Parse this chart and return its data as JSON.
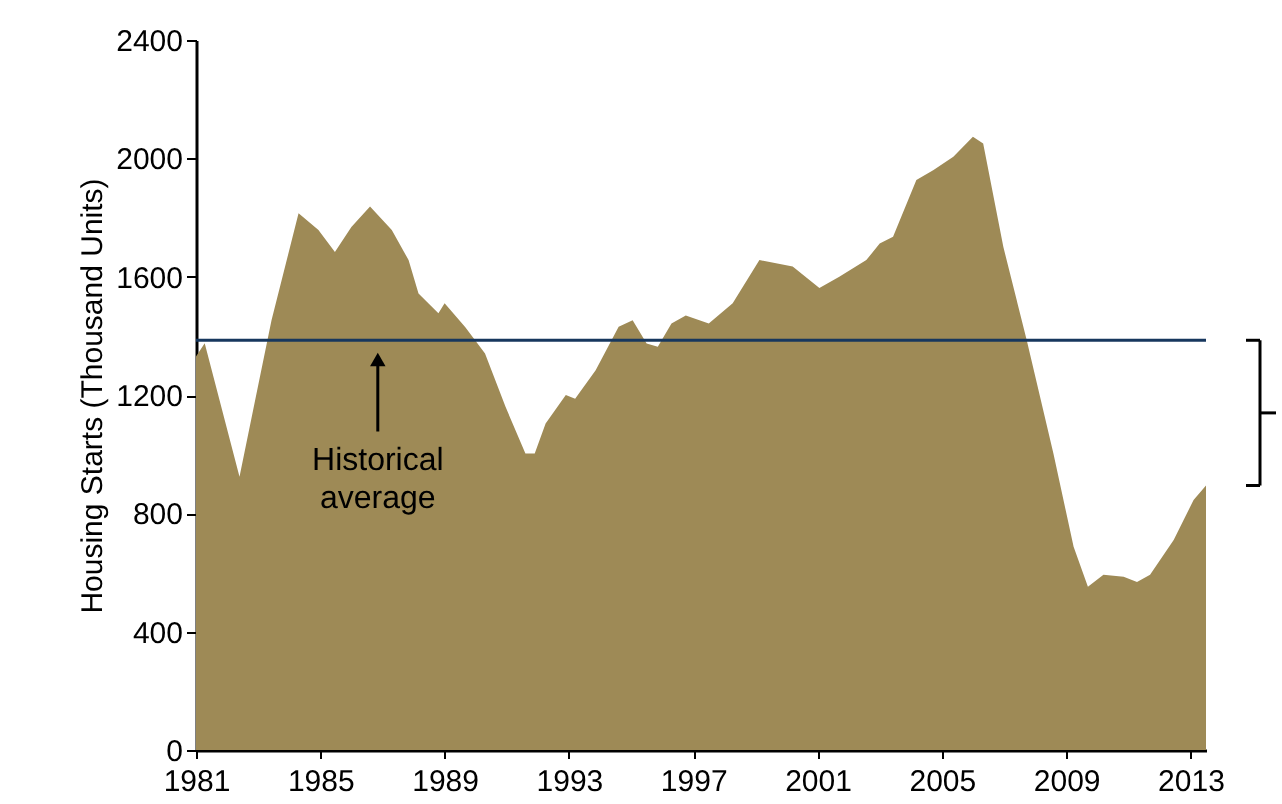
{
  "chart_data": {
    "type": "area",
    "ylabel": "Housing Starts (Thousand Units)",
    "x": [
      1981.0,
      1981.28,
      1982.4,
      1983.43,
      1984.3,
      1984.94,
      1985.47,
      1986.0,
      1986.6,
      1987.3,
      1987.84,
      1988.16,
      1988.8,
      1989.0,
      1989.66,
      1990.3,
      1990.96,
      1991.6,
      1991.9,
      1992.25,
      1992.9,
      1993.2,
      1993.86,
      1994.6,
      1995.05,
      1995.5,
      1995.86,
      1996.3,
      1996.76,
      1997.5,
      1998.27,
      1999.13,
      2000.2,
      2001.06,
      2001.7,
      2002.57,
      2003.0,
      2003.43,
      2004.18,
      2004.72,
      2005.37,
      2006.0,
      2006.33,
      2006.98,
      2007.73,
      2008.59,
      2009.24,
      2009.7,
      2010.2,
      2010.85,
      2011.28,
      2011.7,
      2012.46,
      2013.1,
      2013.5
    ],
    "series": [
      {
        "color": "#9e8a56",
        "values": [
          1330,
          1375,
          924,
          1453,
          1814,
          1758,
          1683,
          1768,
          1837,
          1758,
          1656,
          1543,
          1476,
          1510,
          1430,
          1340,
          1160,
          1002,
          1002,
          1104,
          1200,
          1187,
          1284,
          1431,
          1453,
          1374,
          1363,
          1442,
          1469,
          1442,
          1510,
          1656,
          1634,
          1562,
          1600,
          1656,
          1712,
          1735,
          1927,
          1960,
          2005,
          2073,
          2050,
          1700,
          1386,
          1002,
          687,
          552,
          592,
          586,
          568,
          592,
          710,
          845,
          894
        ]
      }
    ],
    "xlim": [
      1981,
      2013.5
    ],
    "xticks": [
      1981,
      1985,
      1989,
      1993,
      1997,
      2001,
      2005,
      2009,
      2013
    ],
    "ylim": [
      0,
      2400
    ],
    "yticks": [
      0,
      400,
      800,
      {
        "value": 1200,
        "label": "1200"
      },
      {
        "value": 1600,
        "label": "1600"
      },
      {
        "value": 2000,
        "label": "2000"
      },
      {
        "value": 2400,
        "label": "2400"
      }
    ],
    "ref_lines": [
      {
        "axis": "y",
        "value": 1385,
        "color": "#17375e"
      }
    ],
    "annotations": [
      "Historical average"
    ],
    "grid": false
  }
}
